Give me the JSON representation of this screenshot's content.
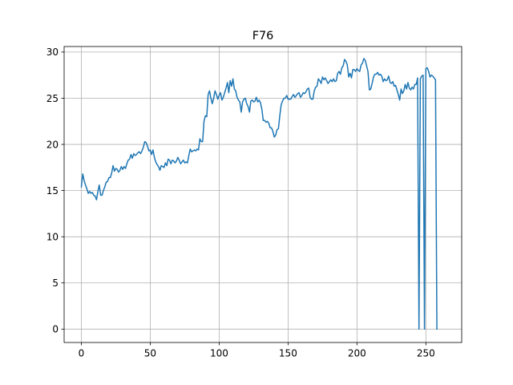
{
  "chart_data": {
    "type": "line",
    "title": "F76",
    "xlabel": "",
    "ylabel": "",
    "xlim": [
      -12.5,
      276
    ],
    "ylim": [
      -1.45,
      30.6
    ],
    "xticks": [
      0,
      50,
      100,
      150,
      200,
      250
    ],
    "yticks": [
      0,
      5,
      10,
      15,
      20,
      25,
      30
    ],
    "grid": true,
    "line_color": "#1f77b4",
    "series": [
      {
        "values": [
          15.4,
          16.8,
          16.1,
          15.6,
          15.2,
          14.7,
          14.9,
          14.7,
          14.8,
          14.5,
          14.4,
          14.0,
          14.9,
          15.6,
          14.5,
          14.5,
          15.0,
          15.4,
          15.9,
          16.0,
          16.4,
          16.4,
          16.9,
          17.7,
          17.1,
          17.4,
          17.3,
          17.0,
          17.2,
          17.6,
          17.3,
          17.6,
          17.4,
          17.9,
          18.3,
          18.4,
          18.9,
          18.5,
          19.0,
          18.8,
          18.9,
          19.1,
          19.2,
          19.0,
          19.3,
          19.7,
          20.3,
          20.2,
          19.8,
          19.3,
          19.4,
          18.9,
          19.4,
          18.6,
          18.1,
          17.8,
          17.6,
          17.2,
          17.7,
          17.6,
          17.5,
          18.0,
          17.7,
          18.4,
          18.3,
          17.9,
          18.3,
          18.2,
          18.0,
          18.2,
          18.6,
          18.3,
          17.9,
          18.1,
          18.3,
          18.0,
          18.1,
          18.0,
          18.8,
          19.5,
          19.2,
          19.3,
          19.4,
          19.3,
          19.5,
          19.4,
          20.6,
          20.3,
          20.3,
          22.5,
          23.1,
          23.0,
          25.4,
          25.8,
          25.0,
          24.4,
          25.0,
          25.8,
          25.4,
          24.9,
          25.3,
          25.6,
          24.8,
          25.1,
          25.6,
          26.1,
          26.7,
          25.6,
          26.9,
          26.3,
          27.1,
          26.0,
          25.8,
          25.1,
          24.8,
          24.6,
          23.5,
          24.6,
          24.9,
          25.0,
          24.4,
          24.1,
          23.5,
          24.7,
          24.8,
          24.6,
          24.7,
          25.1,
          24.6,
          24.8,
          24.5,
          23.8,
          22.6,
          22.6,
          22.4,
          22.5,
          22.3,
          21.8,
          21.8,
          21.4,
          20.8,
          21.0,
          21.6,
          21.7,
          23.1,
          24.3,
          24.7,
          25.0,
          25.0,
          25.3,
          24.9,
          24.9,
          24.9,
          25.2,
          25.4,
          25.1,
          25.3,
          25.5,
          25.6,
          25.1,
          25.3,
          25.6,
          25.5,
          25.7,
          26.0,
          26.1,
          25.1,
          24.9,
          24.9,
          25.8,
          26.2,
          26.3,
          27.1,
          26.9,
          26.6,
          27.3,
          27.0,
          27.2,
          26.9,
          26.6,
          26.8,
          27.0,
          26.8,
          27.1,
          26.8,
          26.9,
          27.7,
          27.9,
          27.6,
          28.3,
          28.5,
          29.2,
          29.0,
          28.6,
          27.3,
          27.7,
          27.2,
          28.1,
          28.1,
          27.9,
          28.2,
          28.0,
          27.9,
          28.6,
          28.8,
          29.3,
          29.1,
          28.5,
          27.9,
          25.9,
          26.0,
          26.6,
          27.3,
          27.6,
          27.6,
          27.8,
          27.5,
          27.6,
          27.4,
          26.8,
          27.1,
          26.9,
          27.0,
          27.4,
          26.7,
          26.6,
          26.8,
          26.3,
          26.4,
          25.9,
          25.4,
          24.8,
          26.0,
          25.5,
          25.8,
          26.5,
          26.0,
          26.7,
          26.1,
          25.9,
          26.2,
          26.0,
          26.5,
          26.5,
          27.2,
          0.0,
          27.1,
          27.4,
          27.5,
          0.0,
          28.2,
          28.3,
          27.9,
          27.3,
          27.5,
          27.4,
          27.2,
          27.0,
          0.0
        ]
      }
    ]
  }
}
